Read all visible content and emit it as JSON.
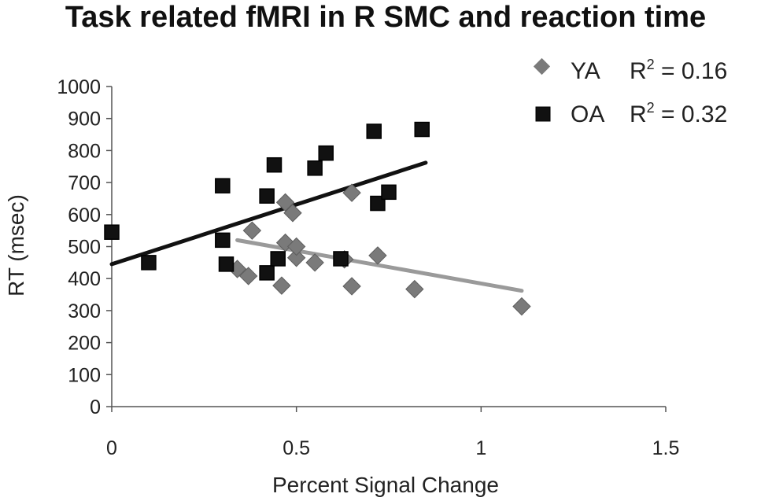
{
  "chart_data": {
    "type": "scatter",
    "title": "Task related fMRI in R SMC and reaction time",
    "xlabel": "Percent Signal Change",
    "ylabel": "RT (msec)",
    "xlim": [
      0,
      1.5
    ],
    "ylim": [
      0,
      1000
    ],
    "xticks": [
      0,
      0.5,
      1,
      1.5
    ],
    "xtick_labels": [
      "0",
      "0.5",
      "1",
      "1.5"
    ],
    "yticks": [
      0,
      100,
      200,
      300,
      400,
      500,
      600,
      700,
      800,
      900,
      1000
    ],
    "ytick_labels": [
      "0",
      "100",
      "200",
      "300",
      "400",
      "500",
      "600",
      "700",
      "800",
      "900",
      "1000"
    ],
    "legend_position": "top-right",
    "series": [
      {
        "name": "YA",
        "marker": "diamond",
        "color": "#7a7a7a",
        "trendline_color": "#9a9a9a",
        "r2_label": "R",
        "r2_sup": "2",
        "r2_value": " = 0.16",
        "x": [
          0.34,
          0.37,
          0.38,
          0.46,
          0.47,
          0.47,
          0.49,
          0.5,
          0.5,
          0.55,
          0.63,
          0.65,
          0.65,
          0.72,
          0.82,
          1.11
        ],
        "y": [
          430,
          408,
          550,
          378,
          638,
          512,
          605,
          465,
          500,
          450,
          460,
          668,
          376,
          472,
          367,
          313
        ],
        "trendline": {
          "x": [
            0.34,
            1.11
          ],
          "y": [
            520,
            362
          ]
        }
      },
      {
        "name": "OA",
        "marker": "square",
        "color": "#111111",
        "trendline_color": "#111111",
        "r2_label": "R",
        "r2_sup": "2",
        "r2_value": " = 0.32",
        "x": [
          0.0,
          0.1,
          0.3,
          0.3,
          0.31,
          0.42,
          0.42,
          0.44,
          0.45,
          0.55,
          0.58,
          0.62,
          0.71,
          0.72,
          0.75,
          0.84
        ],
        "y": [
          545,
          450,
          690,
          520,
          445,
          658,
          418,
          755,
          462,
          745,
          792,
          462,
          860,
          635,
          670,
          866
        ],
        "trendline": {
          "x": [
            0.0,
            0.85
          ],
          "y": [
            445,
            762
          ]
        }
      }
    ]
  }
}
